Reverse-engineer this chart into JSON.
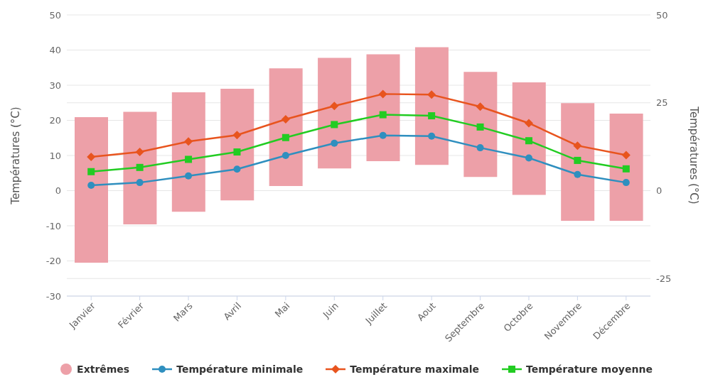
{
  "chart_data": {
    "type": "line",
    "ylabel": "Températures (°C)",
    "y2label": "Températures (°C)",
    "categories": [
      "Janvier",
      "Février",
      "Mars",
      "Avril",
      "Mai",
      "Juin",
      "Juillet",
      "Aout",
      "Septembre",
      "Octobre",
      "Novembre",
      "Décembre"
    ],
    "ylim": [
      -30,
      50
    ],
    "yticks": [
      -30,
      -20,
      -10,
      0,
      10,
      20,
      30,
      40,
      50
    ],
    "y2lim": [
      -30,
      50
    ],
    "y2ticks": [
      -25,
      0,
      25,
      50
    ],
    "grid": "y",
    "legend": "bottom",
    "series": [
      {
        "name": "Extrêmes",
        "type": "bar",
        "color": "#eda0a8",
        "base": [
          -20.5,
          -9.6,
          -6,
          -2.8,
          1.3,
          6.3,
          8.4,
          7.3,
          3.9,
          -1.2,
          -8.6,
          -8.6
        ],
        "values": [
          41.4,
          32,
          34,
          31.8,
          33.5,
          31.5,
          30.4,
          33.5,
          29.9,
          32,
          33.5,
          30.5
        ]
      },
      {
        "name": "Température minimale",
        "marker": "circle",
        "color": "#2f8fbf",
        "values": [
          1.5,
          2.3,
          4.2,
          6.1,
          10,
          13.5,
          15.7,
          15.5,
          12.2,
          9.3,
          4.6,
          2.3
        ]
      },
      {
        "name": "Température maximale",
        "marker": "diamond",
        "color": "#e8541e",
        "values": [
          9.6,
          11,
          14,
          15.8,
          20.3,
          24.1,
          27.5,
          27.3,
          23.9,
          19.2,
          12.8,
          10.1
        ]
      },
      {
        "name": "Température moyenne",
        "marker": "square",
        "color": "#22cc22",
        "values": [
          5.4,
          6.6,
          8.9,
          11,
          15.1,
          18.8,
          21.6,
          21.3,
          18.1,
          14.2,
          8.6,
          6.2
        ]
      }
    ]
  }
}
